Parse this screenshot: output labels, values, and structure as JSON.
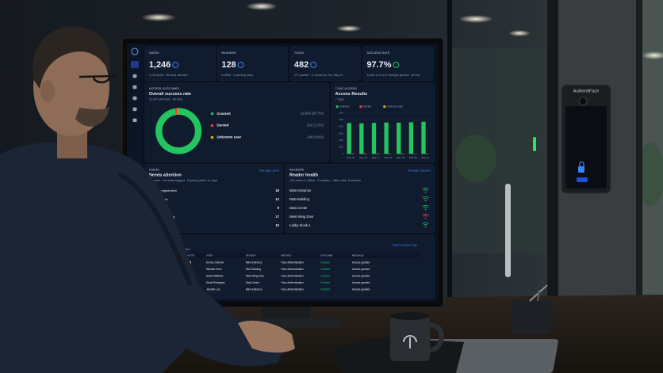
{
  "stats": [
    {
      "label": "USERS",
      "value": "1,246",
      "note": "1,190 active · 56 need attention"
    },
    {
      "label": "READERS",
      "value": "128",
      "note": "8 offline · 5 pending setup"
    },
    {
      "label": "TODAY",
      "value": "482",
      "note": "471 granted · 11 denied on Tue, May 21"
    },
    {
      "label": "SUCCESS RATE",
      "value": "97.7%",
      "note": "12,842 of 13,147 attempts granted · all time"
    }
  ],
  "outcomes": {
    "kicker": "ACCESS OUTCOMES",
    "title": "Overall success rate",
    "subtitle": "13,147 attempts · All time",
    "items": [
      {
        "name": "Granted",
        "count": 12842,
        "label": "12,842 (97.7%)",
        "color": "#22c55e"
      },
      {
        "name": "Denied",
        "count": 201,
        "label": "201 (1.5%)",
        "color": "#ef4444"
      },
      {
        "name": "Unknown user",
        "count": 104,
        "label": "104 (0.8%)",
        "color": "#eab308"
      }
    ]
  },
  "weekly": {
    "kicker": "7-DAY ACCESS",
    "title": "Access Results",
    "subtitle": "7 days",
    "categories": [
      "May 15",
      "May 16",
      "May 17",
      "May 18",
      "May 19",
      "May 20",
      "May 21"
    ],
    "series": [
      {
        "name": "Granted",
        "color": "#22c55e",
        "values": [
          452,
          448,
          455,
          460,
          458,
          463,
          471
        ]
      },
      {
        "name": "Denied",
        "color": "#ef4444",
        "values": [
          9,
          12,
          8,
          10,
          11,
          7,
          11
        ]
      },
      {
        "name": "Unknown user",
        "color": "#eab308",
        "values": [
          5,
          4,
          6,
          3,
          5,
          4,
          3
        ]
      }
    ],
    "ylim": [
      0,
      600
    ],
    "yticks": [
      0,
      100,
      200,
      300,
      400,
      500,
      600
    ]
  },
  "users": {
    "kicker": "USERS",
    "title": "Needs attention",
    "subtitle": "56 users · currently flagged · Expiring within 14 days",
    "link": "Manage users",
    "rows": [
      {
        "label": "Pending registration",
        "count": "18"
      },
      {
        "label": "Unauthorized",
        "count": "12"
      },
      {
        "label": "Expired",
        "count": "9"
      },
      {
        "label": "Start date pending",
        "count": "17"
      },
      {
        "label": "Expiring by Jun 4",
        "count": "10"
      }
    ]
  },
  "readers": {
    "kicker": "READERS",
    "title": "Reader health",
    "subtitle": "120 online, 8 offline · 5 readers · offline after 5 minutes",
    "link": "Manage readers",
    "rows": [
      {
        "name": "Main Entrance",
        "color": "#22c55e"
      },
      {
        "name": "R&D Building",
        "color": "#22c55e"
      },
      {
        "name": "Data Center",
        "color": "#22c55e"
      },
      {
        "name": "West Wing Door",
        "color": "#ef4444"
      },
      {
        "name": "Lobby Kiosk 1",
        "color": "#22c55e"
      }
    ]
  },
  "logs": {
    "kicker": "ACCESS LOGS",
    "title": "Recent access",
    "subtitle": "Latest 15 attempts · 15 min · All time",
    "link": "Open access logs",
    "columns": [
      "TIME",
      "PHOTO",
      "USER",
      "READER",
      "METHOD",
      "OUTCOME",
      "MESSAGE"
    ],
    "rows": [
      [
        "May 21, 9:47 AM",
        "Emma Johnson",
        "Main Entrance",
        "Face Authentication",
        "Granted",
        "Access granted"
      ],
      [
        "May 21, 9:46 AM",
        "Michael Chen",
        "R&D Building",
        "Face Authentication",
        "Granted",
        "Access granted"
      ],
      [
        "May 21, 9:45 AM",
        "Sarah Williams",
        "West Wing Door",
        "Face Authentication",
        "Granted",
        "Access granted"
      ],
      [
        "May 21, 9:44 AM",
        "David Rodriguez",
        "Data Center",
        "Face Authentication",
        "Granted",
        "Access granted"
      ],
      [
        "May 21, 9:39 AM",
        "Jennifer Lee",
        "Main Entrance",
        "Face Authentication",
        "Granted",
        "Access granted"
      ]
    ]
  },
  "device": {
    "brand": "AuthentiFace"
  }
}
